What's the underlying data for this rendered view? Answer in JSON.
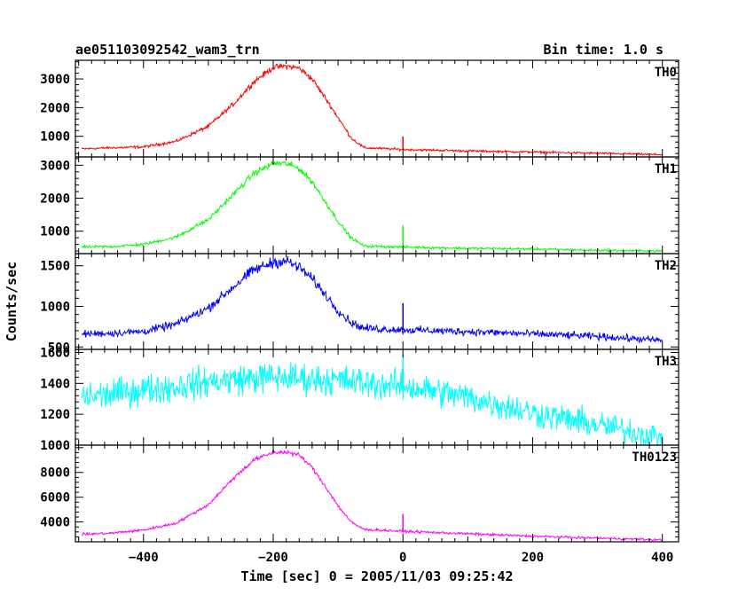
{
  "header": {
    "left_title": "ae051103092542_wam3_trn",
    "right_title": "Bin time: 1.0 s"
  },
  "axes": {
    "xlabel": "Time [sec] 0 = 2005/11/03 09:25:42",
    "ylabel": "Counts/sec"
  },
  "chart_data": {
    "type": "line",
    "xlim": [
      -505,
      425
    ],
    "x_ticks": [
      -400,
      -200,
      0,
      200,
      400
    ],
    "x_tick_labels": [
      "−400",
      "−200",
      "0",
      "200",
      "400"
    ],
    "grid": false,
    "panels": [
      {
        "name": "TH0",
        "color": "#ff0000",
        "ylim": [
          280,
          3650
        ],
        "y_ticks": [
          1000,
          2000,
          3000
        ],
        "y_tick_labels": [
          "1000",
          "2000",
          "3000"
        ],
        "x": [
          -495,
          -450,
          -400,
          -350,
          -300,
          -260,
          -230,
          -200,
          -180,
          -160,
          -140,
          -120,
          -100,
          -80,
          -60,
          0,
          100,
          200,
          300,
          400
        ],
        "y": [
          560,
          600,
          630,
          820,
          1350,
          2150,
          2900,
          3400,
          3450,
          3380,
          3000,
          2350,
          1650,
          950,
          600,
          540,
          490,
          450,
          410,
          360
        ]
      },
      {
        "name": "TH1",
        "color": "#00ff00",
        "ylim": [
          320,
          3250
        ],
        "y_ticks": [
          1000,
          2000,
          3000
        ],
        "y_tick_labels": [
          "1000",
          "2000",
          "3000"
        ],
        "x": [
          -495,
          -450,
          -400,
          -350,
          -300,
          -260,
          -230,
          -200,
          -180,
          -160,
          -140,
          -120,
          -100,
          -80,
          -60,
          0,
          100,
          200,
          300,
          400
        ],
        "y": [
          520,
          530,
          600,
          820,
          1350,
          2150,
          2750,
          3050,
          3050,
          2900,
          2500,
          1900,
          1300,
          800,
          550,
          520,
          480,
          460,
          420,
          400
        ]
      },
      {
        "name": "TH2",
        "color": "#0000ff",
        "ylim": [
          470,
          1650
        ],
        "y_ticks": [
          500,
          1000,
          1500
        ],
        "y_tick_labels": [
          "500",
          "1000",
          "1500"
        ],
        "x": [
          -495,
          -450,
          -400,
          -350,
          -300,
          -260,
          -230,
          -200,
          -180,
          -160,
          -140,
          -120,
          -100,
          -80,
          -60,
          0,
          100,
          200,
          300,
          400
        ],
        "y": [
          660,
          670,
          690,
          780,
          980,
          1250,
          1450,
          1540,
          1560,
          1480,
          1340,
          1150,
          950,
          800,
          730,
          710,
          690,
          660,
          630,
          580
        ]
      },
      {
        "name": "TH3",
        "color": "#00ffff",
        "ylim": [
          1000,
          1620
        ],
        "y_ticks": [
          1000,
          1200,
          1400,
          1600
        ],
        "y_tick_labels": [
          "1000",
          "1200",
          "1400",
          "1600"
        ],
        "x": [
          -495,
          -450,
          -400,
          -350,
          -300,
          -250,
          -200,
          -150,
          -100,
          -50,
          0,
          50,
          100,
          150,
          200,
          250,
          300,
          350,
          400
        ],
        "y": [
          1310,
          1330,
          1360,
          1380,
          1410,
          1430,
          1440,
          1430,
          1420,
          1400,
          1380,
          1350,
          1310,
          1260,
          1210,
          1170,
          1130,
          1090,
          1050
        ]
      },
      {
        "name": "TH0123",
        "color": "#ff00ff",
        "ylim": [
          2400,
          10200
        ],
        "y_ticks": [
          4000,
          6000,
          8000
        ],
        "y_tick_labels": [
          "4000",
          "6000",
          "8000"
        ],
        "x": [
          -495,
          -450,
          -400,
          -350,
          -300,
          -260,
          -230,
          -200,
          -180,
          -160,
          -140,
          -120,
          -100,
          -80,
          -60,
          0,
          100,
          200,
          300,
          400
        ],
        "y": [
          3000,
          3100,
          3350,
          3900,
          5400,
          7600,
          9000,
          9600,
          9650,
          9400,
          8400,
          6900,
          5300,
          4000,
          3400,
          3250,
          3050,
          2850,
          2700,
          2550
        ]
      }
    ],
    "spike": {
      "x": 0,
      "heights": [
        450,
        650,
        330,
        210,
        1400
      ]
    }
  }
}
